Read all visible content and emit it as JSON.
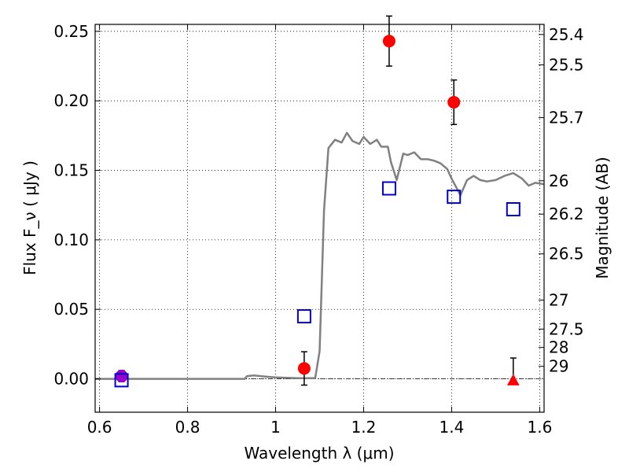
{
  "chart_data": {
    "type": "scatter",
    "xlabel": "Wavelength  λ (μm)",
    "ylabel": "Flux  F_ν  ( μJy )",
    "y2label": "Magnitude (AB)",
    "xlim": [
      0.59,
      1.61
    ],
    "ylim": [
      -0.024,
      0.255
    ],
    "grid": true,
    "x_ticks": [
      0.6,
      0.8,
      1.0,
      1.2,
      1.4,
      1.6
    ],
    "x_tick_labels": [
      "0.6",
      "0.8",
      "1",
      "1.2",
      "1.4",
      "1.6"
    ],
    "y_ticks": [
      0.0,
      0.05,
      0.1,
      0.15,
      0.2,
      0.25
    ],
    "y_tick_labels": [
      "0.00",
      "0.05",
      "0.10",
      "0.15",
      "0.20",
      "0.25"
    ],
    "y2_ticks": [
      {
        "label": "25.4",
        "flux": 0.2477
      },
      {
        "label": "25.5",
        "flux": 0.2259
      },
      {
        "label": "25.7",
        "flux": 0.1879
      },
      {
        "label": "26",
        "flux": 0.1425
      },
      {
        "label": "26.2",
        "flux": 0.1185
      },
      {
        "label": "26.5",
        "flux": 0.0899
      },
      {
        "label": "27",
        "flux": 0.0567
      },
      {
        "label": "27.5",
        "flux": 0.0358
      },
      {
        "label": "28",
        "flux": 0.0226
      },
      {
        "label": "29",
        "flux": 0.009
      }
    ],
    "colors": {
      "observed": "#ff0000",
      "model": "#0000cc",
      "sed": "#808080",
      "uv_point": "#9900cc"
    },
    "series": [
      {
        "marker": "filled-circle",
        "color": "#ff0000",
        "x": [
          1.065,
          1.258,
          1.405
        ],
        "y": [
          0.0075,
          0.243,
          0.199
        ],
        "yerr": [
          0.012,
          0.018,
          0.016
        ]
      },
      {
        "marker": "filled-circle",
        "color": "#9900cc",
        "x": [
          0.65
        ],
        "y": [
          0.002
        ],
        "yerr": [
          0.004
        ]
      },
      {
        "marker": "triangle",
        "color": "#ff0000",
        "x": [
          1.54
        ],
        "y": [
          -0.001
        ],
        "yerr_upper": [
          0.016
        ]
      },
      {
        "marker": "open-square",
        "color": "#0000cc",
        "x": [
          0.65,
          1.065,
          1.258,
          1.405,
          1.54
        ],
        "y": [
          -0.001,
          0.045,
          0.137,
          0.131,
          0.122
        ]
      },
      {
        "type": "line",
        "color": "#808080",
        "x": [
          0.59,
          0.8,
          0.93,
          0.935,
          0.95,
          0.98,
          1.0,
          1.05,
          1.09,
          1.1,
          1.11,
          1.12,
          1.135,
          1.15,
          1.162,
          1.175,
          1.19,
          1.2,
          1.215,
          1.23,
          1.24,
          1.255,
          1.262,
          1.275,
          1.29,
          1.3,
          1.315,
          1.33,
          1.345,
          1.36,
          1.375,
          1.39,
          1.4,
          1.41,
          1.42,
          1.435,
          1.45,
          1.465,
          1.48,
          1.5,
          1.52,
          1.54,
          1.56,
          1.575,
          1.59,
          1.61
        ],
        "y": [
          0.0,
          0.0,
          0.0,
          0.002,
          0.0025,
          0.0015,
          0.001,
          0.0005,
          0.0005,
          0.02,
          0.121,
          0.166,
          0.172,
          0.17,
          0.177,
          0.171,
          0.169,
          0.174,
          0.169,
          0.172,
          0.167,
          0.167,
          0.156,
          0.143,
          0.162,
          0.161,
          0.163,
          0.158,
          0.158,
          0.157,
          0.155,
          0.151,
          0.144,
          0.138,
          0.132,
          0.143,
          0.146,
          0.143,
          0.142,
          0.143,
          0.146,
          0.148,
          0.144,
          0.139,
          0.141,
          0.14
        ]
      }
    ]
  }
}
